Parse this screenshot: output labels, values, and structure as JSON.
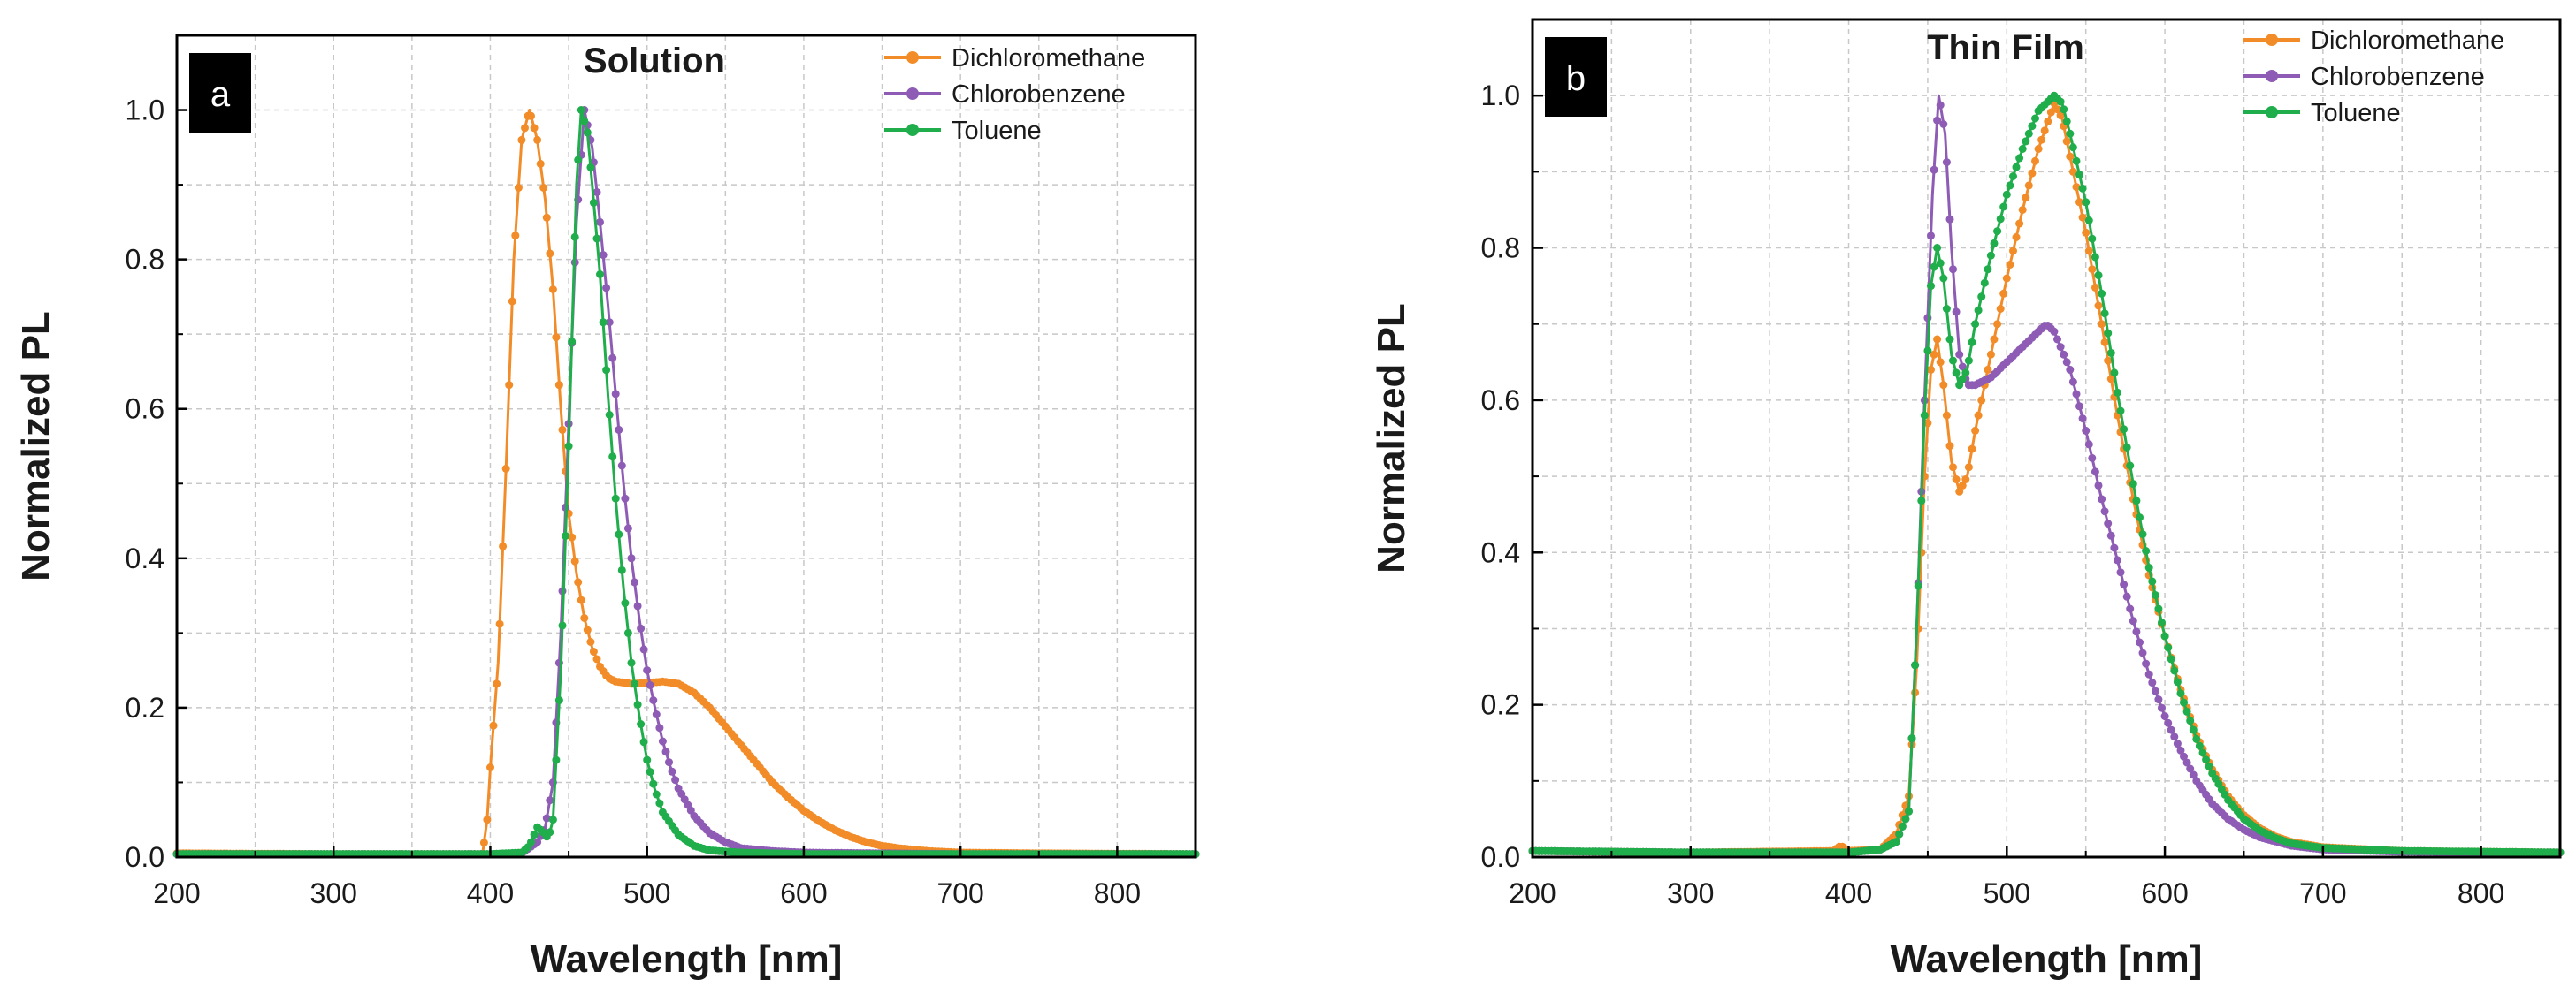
{
  "colors": {
    "Dichloromethane": "#f28c28",
    "Chlorobenzene": "#8e5bb5",
    "Toluene": "#1fae4b",
    "grid": "#c8c8c8",
    "axis": "#000000"
  },
  "chart_data": [
    {
      "type": "line",
      "panel_label": "a",
      "title": "Solution",
      "xlabel": "Wavelength [nm]",
      "ylabel": "Normalized PL",
      "xlim": [
        200,
        850
      ],
      "ylim": [
        0,
        1.1
      ],
      "xticks": [
        200,
        300,
        400,
        500,
        600,
        700,
        800
      ],
      "yticks": [
        0.0,
        0.2,
        0.4,
        0.6,
        0.8,
        1.0
      ],
      "xtick_labels": [
        "200",
        "300",
        "400",
        "500",
        "600",
        "700",
        "800"
      ],
      "ytick_labels": [
        "0.0",
        "0.2",
        "0.4",
        "0.6",
        "0.8",
        "1.0"
      ],
      "grid": true,
      "legend": "top-right",
      "series": [
        {
          "name": "Dichloromethane",
          "points": [
            [
              200,
              0.005
            ],
            [
              300,
              0.004
            ],
            [
              395,
              0.004
            ],
            [
              398,
              0.05
            ],
            [
              400,
              0.12
            ],
            [
              405,
              0.26
            ],
            [
              410,
              0.52
            ],
            [
              415,
              0.8
            ],
            [
              420,
              0.96
            ],
            [
              425,
              1.0
            ],
            [
              430,
              0.96
            ],
            [
              435,
              0.88
            ],
            [
              440,
              0.76
            ],
            [
              445,
              0.6
            ],
            [
              450,
              0.46
            ],
            [
              455,
              0.38
            ],
            [
              460,
              0.32
            ],
            [
              465,
              0.28
            ],
            [
              470,
              0.255
            ],
            [
              475,
              0.24
            ],
            [
              480,
              0.235
            ],
            [
              490,
              0.232
            ],
            [
              500,
              0.233
            ],
            [
              510,
              0.235
            ],
            [
              520,
              0.232
            ],
            [
              530,
              0.22
            ],
            [
              540,
              0.2
            ],
            [
              550,
              0.175
            ],
            [
              560,
              0.15
            ],
            [
              570,
              0.125
            ],
            [
              580,
              0.1
            ],
            [
              590,
              0.08
            ],
            [
              600,
              0.062
            ],
            [
              610,
              0.048
            ],
            [
              620,
              0.036
            ],
            [
              630,
              0.027
            ],
            [
              640,
              0.02
            ],
            [
              650,
              0.015
            ],
            [
              660,
              0.012
            ],
            [
              680,
              0.008
            ],
            [
              700,
              0.006
            ],
            [
              750,
              0.005
            ],
            [
              850,
              0.004
            ]
          ]
        },
        {
          "name": "Chlorobenzene",
          "points": [
            [
              200,
              0.004
            ],
            [
              400,
              0.004
            ],
            [
              420,
              0.005
            ],
            [
              430,
              0.02
            ],
            [
              435,
              0.04
            ],
            [
              440,
              0.1
            ],
            [
              445,
              0.3
            ],
            [
              450,
              0.58
            ],
            [
              455,
              0.85
            ],
            [
              460,
              1.0
            ],
            [
              465,
              0.95
            ],
            [
              470,
              0.85
            ],
            [
              475,
              0.74
            ],
            [
              480,
              0.62
            ],
            [
              485,
              0.5
            ],
            [
              490,
              0.4
            ],
            [
              495,
              0.32
            ],
            [
              500,
              0.25
            ],
            [
              505,
              0.2
            ],
            [
              510,
              0.155
            ],
            [
              515,
              0.12
            ],
            [
              520,
              0.092
            ],
            [
              530,
              0.055
            ],
            [
              540,
              0.032
            ],
            [
              550,
              0.02
            ],
            [
              560,
              0.012
            ],
            [
              580,
              0.008
            ],
            [
              600,
              0.006
            ],
            [
              700,
              0.004
            ],
            [
              850,
              0.004
            ]
          ]
        },
        {
          "name": "Toluene",
          "points": [
            [
              200,
              0.004
            ],
            [
              400,
              0.004
            ],
            [
              420,
              0.006
            ],
            [
              425,
              0.015
            ],
            [
              430,
              0.04
            ],
            [
              433,
              0.035
            ],
            [
              437,
              0.025
            ],
            [
              440,
              0.05
            ],
            [
              445,
              0.25
            ],
            [
              450,
              0.55
            ],
            [
              455,
              0.9
            ],
            [
              458,
              1.0
            ],
            [
              462,
              0.97
            ],
            [
              465,
              0.9
            ],
            [
              470,
              0.78
            ],
            [
              475,
              0.62
            ],
            [
              480,
              0.48
            ],
            [
              485,
              0.36
            ],
            [
              490,
              0.26
            ],
            [
              495,
              0.19
            ],
            [
              500,
              0.13
            ],
            [
              505,
              0.09
            ],
            [
              510,
              0.06
            ],
            [
              520,
              0.03
            ],
            [
              530,
              0.015
            ],
            [
              540,
              0.009
            ],
            [
              560,
              0.006
            ],
            [
              600,
              0.004
            ],
            [
              850,
              0.004
            ]
          ]
        }
      ]
    },
    {
      "type": "line",
      "panel_label": "b",
      "title": "Thin Film",
      "xlabel": "Wavelength [nm]",
      "ylabel": "Normalized PL",
      "xlim": [
        200,
        850
      ],
      "ylim": [
        0,
        1.1
      ],
      "xticks": [
        200,
        300,
        400,
        500,
        600,
        700,
        800
      ],
      "yticks": [
        0.0,
        0.2,
        0.4,
        0.6,
        0.8,
        1.0
      ],
      "xtick_labels": [
        "200",
        "300",
        "400",
        "500",
        "600",
        "700",
        "800"
      ],
      "ytick_labels": [
        "0.0",
        "0.2",
        "0.4",
        "0.6",
        "0.8",
        "1.0"
      ],
      "grid": true,
      "legend": "top-right",
      "series": [
        {
          "name": "Dichloromethane",
          "points": [
            [
              200,
              0.008
            ],
            [
              300,
              0.006
            ],
            [
              390,
              0.008
            ],
            [
              395,
              0.015
            ],
            [
              400,
              0.008
            ],
            [
              420,
              0.01
            ],
            [
              430,
              0.03
            ],
            [
              438,
              0.08
            ],
            [
              443,
              0.25
            ],
            [
              448,
              0.5
            ],
            [
              452,
              0.64
            ],
            [
              456,
              0.68
            ],
            [
              460,
              0.62
            ],
            [
              465,
              0.52
            ],
            [
              470,
              0.48
            ],
            [
              475,
              0.5
            ],
            [
              480,
              0.56
            ],
            [
              490,
              0.66
            ],
            [
              500,
              0.76
            ],
            [
              510,
              0.85
            ],
            [
              520,
              0.93
            ],
            [
              530,
              0.99
            ],
            [
              535,
              0.97
            ],
            [
              540,
              0.92
            ],
            [
              550,
              0.82
            ],
            [
              560,
              0.7
            ],
            [
              570,
              0.58
            ],
            [
              580,
              0.47
            ],
            [
              590,
              0.37
            ],
            [
              600,
              0.29
            ],
            [
              610,
              0.22
            ],
            [
              620,
              0.16
            ],
            [
              630,
              0.115
            ],
            [
              640,
              0.08
            ],
            [
              650,
              0.055
            ],
            [
              660,
              0.038
            ],
            [
              670,
              0.027
            ],
            [
              680,
              0.02
            ],
            [
              700,
              0.013
            ],
            [
              750,
              0.008
            ],
            [
              850,
              0.006
            ]
          ]
        },
        {
          "name": "Chlorobenzene",
          "points": [
            [
              200,
              0.008
            ],
            [
              300,
              0.006
            ],
            [
              400,
              0.006
            ],
            [
              420,
              0.01
            ],
            [
              430,
              0.02
            ],
            [
              438,
              0.06
            ],
            [
              443,
              0.3
            ],
            [
              448,
              0.6
            ],
            [
              453,
              0.87
            ],
            [
              457,
              1.0
            ],
            [
              461,
              0.95
            ],
            [
              465,
              0.8
            ],
            [
              470,
              0.66
            ],
            [
              475,
              0.62
            ],
            [
              480,
              0.62
            ],
            [
              490,
              0.63
            ],
            [
              500,
              0.65
            ],
            [
              510,
              0.67
            ],
            [
              520,
              0.69
            ],
            [
              525,
              0.7
            ],
            [
              530,
              0.69
            ],
            [
              540,
              0.64
            ],
            [
              550,
              0.56
            ],
            [
              560,
              0.47
            ],
            [
              570,
              0.39
            ],
            [
              580,
              0.31
            ],
            [
              590,
              0.24
            ],
            [
              600,
              0.185
            ],
            [
              610,
              0.14
            ],
            [
              620,
              0.1
            ],
            [
              630,
              0.07
            ],
            [
              640,
              0.05
            ],
            [
              650,
              0.036
            ],
            [
              660,
              0.026
            ],
            [
              680,
              0.015
            ],
            [
              700,
              0.01
            ],
            [
              750,
              0.007
            ],
            [
              850,
              0.006
            ]
          ]
        },
        {
          "name": "Toluene",
          "points": [
            [
              200,
              0.008
            ],
            [
              300,
              0.006
            ],
            [
              400,
              0.006
            ],
            [
              420,
              0.01
            ],
            [
              430,
              0.02
            ],
            [
              438,
              0.06
            ],
            [
              443,
              0.3
            ],
            [
              448,
              0.58
            ],
            [
              452,
              0.75
            ],
            [
              456,
              0.8
            ],
            [
              460,
              0.76
            ],
            [
              465,
              0.66
            ],
            [
              470,
              0.62
            ],
            [
              475,
              0.64
            ],
            [
              480,
              0.7
            ],
            [
              490,
              0.79
            ],
            [
              500,
              0.87
            ],
            [
              510,
              0.93
            ],
            [
              520,
              0.98
            ],
            [
              530,
              1.0
            ],
            [
              535,
              0.99
            ],
            [
              540,
              0.95
            ],
            [
              550,
              0.86
            ],
            [
              560,
              0.74
            ],
            [
              570,
              0.61
            ],
            [
              580,
              0.49
            ],
            [
              590,
              0.38
            ],
            [
              600,
              0.29
            ],
            [
              610,
              0.215
            ],
            [
              620,
              0.155
            ],
            [
              630,
              0.11
            ],
            [
              640,
              0.075
            ],
            [
              650,
              0.05
            ],
            [
              660,
              0.035
            ],
            [
              670,
              0.025
            ],
            [
              680,
              0.018
            ],
            [
              700,
              0.012
            ],
            [
              750,
              0.008
            ],
            [
              850,
              0.006
            ]
          ]
        }
      ]
    }
  ]
}
